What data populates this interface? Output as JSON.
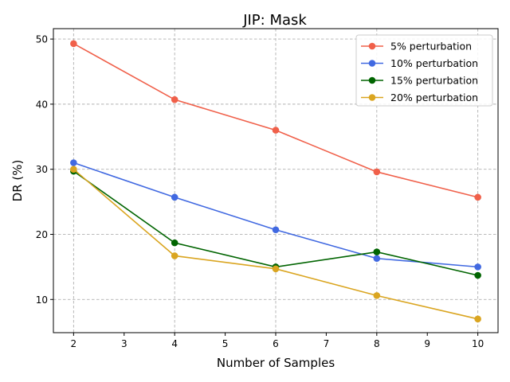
{
  "chart_data": {
    "type": "line",
    "title": "JIP: Mask",
    "xlabel": "Number of Samples",
    "ylabel": "DR (%)",
    "x": [
      2,
      4,
      6,
      8,
      10
    ],
    "xticks": [
      2,
      3,
      4,
      5,
      6,
      7,
      8,
      9,
      10
    ],
    "yticks": [
      10,
      20,
      30,
      40,
      50
    ],
    "xlim": [
      1.6,
      10.4
    ],
    "ylim": [
      4.9,
      51.6
    ],
    "grid": true,
    "legend_position": "top-right",
    "series": [
      {
        "name": "5% perturbation",
        "color": "#f0604a",
        "values": [
          49.3,
          40.7,
          36.0,
          29.6,
          25.7
        ]
      },
      {
        "name": "10% perturbation",
        "color": "#4169e1",
        "values": [
          31.0,
          25.7,
          20.7,
          16.3,
          15.0
        ]
      },
      {
        "name": "15% perturbation",
        "color": "#006400",
        "values": [
          29.7,
          18.7,
          15.0,
          17.3,
          13.7
        ]
      },
      {
        "name": "20% perturbation",
        "color": "#daa520",
        "values": [
          30.0,
          16.7,
          14.7,
          10.6,
          7.0
        ]
      }
    ]
  }
}
